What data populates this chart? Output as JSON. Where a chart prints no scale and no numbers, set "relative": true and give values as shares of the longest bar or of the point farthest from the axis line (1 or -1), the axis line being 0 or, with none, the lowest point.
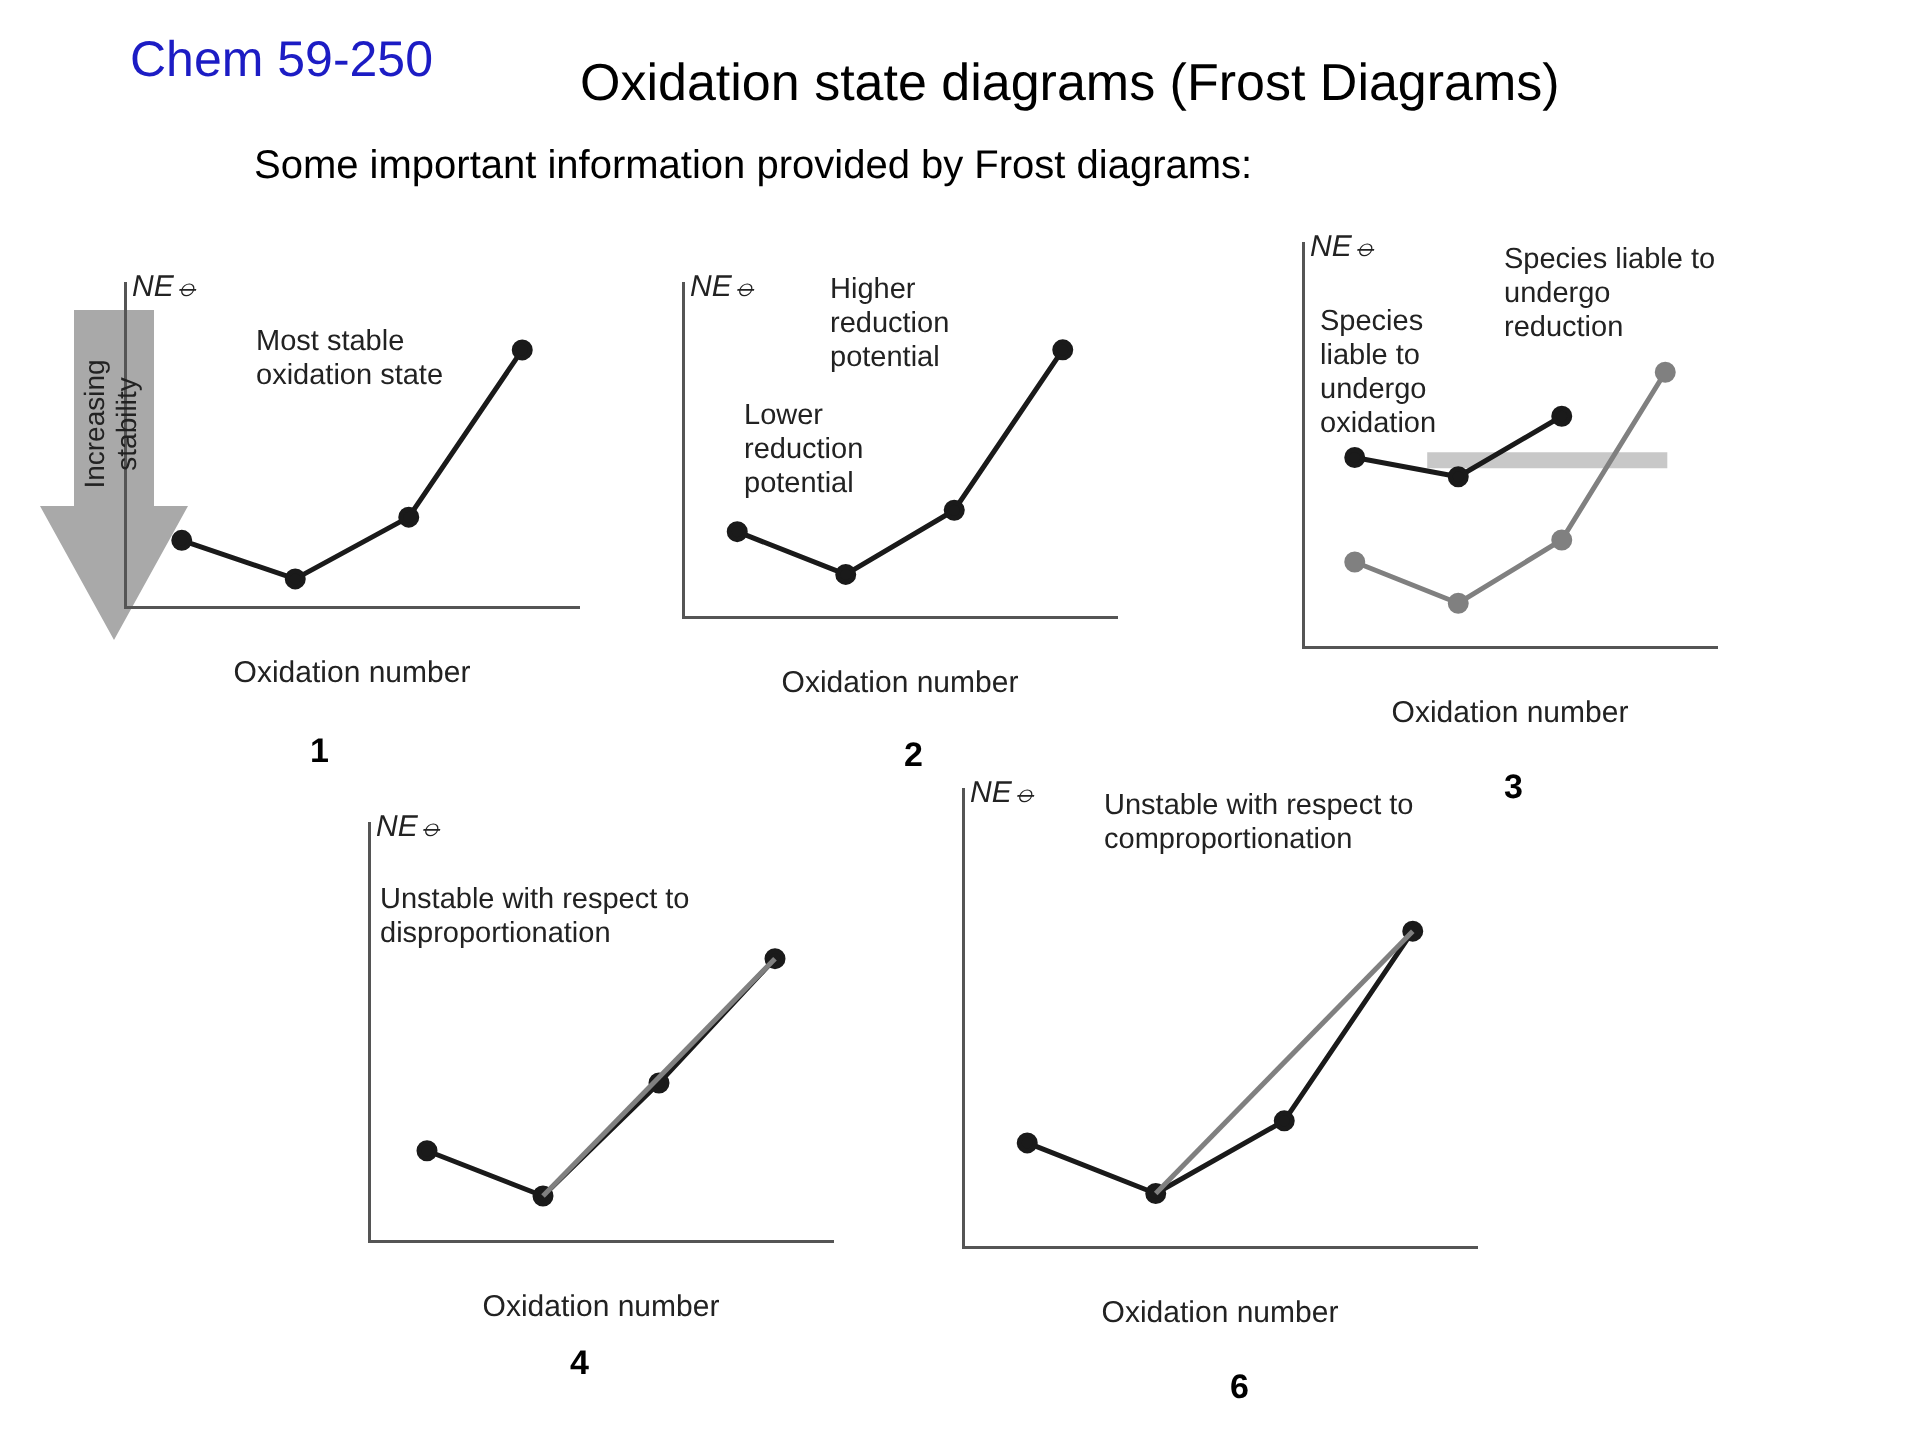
{
  "chart_data": [
    {
      "type": "other",
      "title": "Oxidation state diagrams (Frost Diagrams)",
      "subtitle": "Some important information provided by Frost diagrams:",
      "annotations": [
        "Chem 59-250"
      ]
    },
    {
      "type": "line",
      "title": "1",
      "xlabel": "Oxidation number",
      "ylabel": "NE⦵",
      "relative": true,
      "marker": "circle",
      "categories": [
        null,
        null,
        null,
        null
      ],
      "series": [
        {
          "color": "#1a1a1a",
          "values": [
            0.26,
            0.11,
            0.35,
            1
          ]
        }
      ],
      "annotations": [
        "Most stable oxidation state",
        "Increasing stability"
      ]
    },
    {
      "type": "line",
      "title": "2",
      "xlabel": "Oxidation number",
      "ylabel": "NE⦵",
      "relative": true,
      "marker": "circle",
      "categories": [
        null,
        null,
        null,
        null
      ],
      "series": [
        {
          "color": "#1a1a1a",
          "values": [
            0.32,
            0.16,
            0.4,
            1
          ]
        }
      ],
      "annotations": [
        "Higher reduction potential",
        "Lower reduction potential"
      ]
    },
    {
      "type": "line",
      "title": "3",
      "xlabel": "Oxidation number",
      "ylabel": "NE⦵",
      "relative": true,
      "marker": "circle",
      "categories": [
        null,
        null,
        null,
        null
      ],
      "series": [
        {
          "color": "#1a1a1a",
          "values": [
            0.69,
            0.62,
            0.84,
            null
          ]
        },
        {
          "color": "#808080",
          "values": [
            0.31,
            0.16,
            0.39,
            1
          ]
        }
      ],
      "ref_lines": [
        {
          "axis": "y",
          "value": 0.68,
          "color": "#c8c8c8"
        }
      ],
      "annotations": [
        "Species liable to undergo oxidation",
        "Species liable to undergo reduction"
      ]
    },
    {
      "type": "line",
      "title": "4",
      "xlabel": "Oxidation number",
      "ylabel": "NE⦵",
      "relative": true,
      "marker": "circle",
      "categories": [
        null,
        null,
        null,
        null
      ],
      "series": [
        {
          "color": "#808080",
          "marker": "none",
          "values": [
            null,
            0.16,
            null,
            1
          ]
        },
        {
          "color": "#1a1a1a",
          "values": [
            0.32,
            0.16,
            0.56,
            1
          ]
        }
      ],
      "annotations": [
        "Unstable with respect to disproportionation"
      ]
    },
    {
      "type": "line",
      "title": "6",
      "xlabel": "Oxidation number",
      "ylabel": "NE⦵",
      "relative": true,
      "marker": "circle",
      "categories": [
        null,
        null,
        null,
        null
      ],
      "series": [
        {
          "color": "#808080",
          "marker": "none",
          "values": [
            null,
            0.17,
            null,
            1
          ]
        },
        {
          "color": "#1a1a1a",
          "values": [
            0.33,
            0.17,
            0.4,
            1
          ]
        }
      ],
      "annotations": [
        "Unstable with respect to comproportionation"
      ]
    }
  ]
}
